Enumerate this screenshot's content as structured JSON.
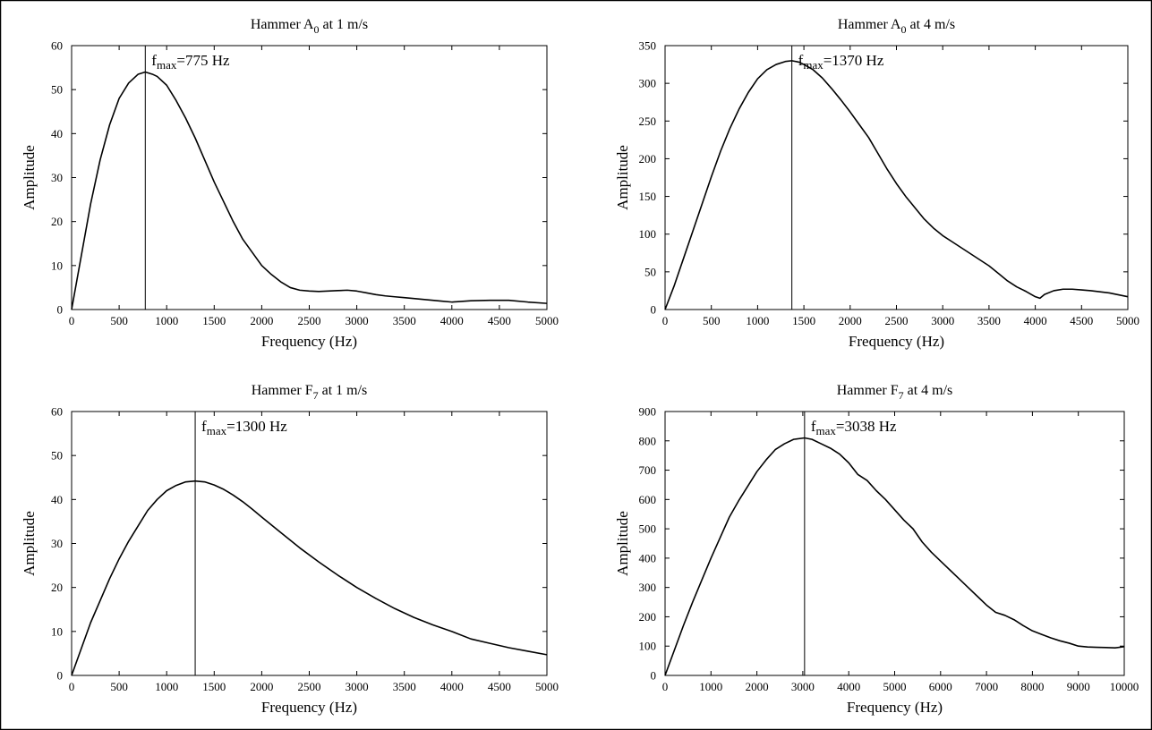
{
  "chart_data": [
    {
      "type": "line",
      "title": {
        "prefix": "Hammer A",
        "sub": "0",
        "suffix": " at 1 m/s"
      },
      "xlabel": "Frequency (Hz)",
      "ylabel": "Amplitude",
      "xlim": [
        0,
        5000
      ],
      "ylim": [
        0,
        60
      ],
      "xticks": [
        0,
        500,
        1000,
        1500,
        2000,
        2500,
        3000,
        3500,
        4000,
        4500,
        5000
      ],
      "yticks": [
        0,
        10,
        20,
        30,
        40,
        50,
        60
      ],
      "grid": false,
      "annotation": {
        "f": "f",
        "sub": "max",
        "text": "=775 Hz",
        "x": 775
      },
      "x": [
        0,
        100,
        200,
        300,
        400,
        500,
        600,
        700,
        775,
        850,
        900,
        1000,
        1100,
        1200,
        1300,
        1400,
        1500,
        1600,
        1700,
        1800,
        1900,
        2000,
        2100,
        2200,
        2300,
        2400,
        2500,
        2600,
        2700,
        2800,
        2900,
        3000,
        3100,
        3200,
        3300,
        3400,
        3500,
        3600,
        3700,
        3800,
        3900,
        4000,
        4200,
        4400,
        4600,
        4800,
        5000
      ],
      "y": [
        0,
        12,
        24,
        34,
        42,
        48,
        51.5,
        53.5,
        54,
        53.5,
        53,
        51,
        47.5,
        43.5,
        39,
        34,
        29,
        24.5,
        20,
        16,
        13,
        10,
        8,
        6.3,
        5,
        4.4,
        4.2,
        4.1,
        4.2,
        4.3,
        4.4,
        4.2,
        3.8,
        3.4,
        3.1,
        2.9,
        2.7,
        2.5,
        2.3,
        2.1,
        1.9,
        1.7,
        2.0,
        2.1,
        2.1,
        1.7,
        1.4
      ]
    },
    {
      "type": "line",
      "title": {
        "prefix": "Hammer A",
        "sub": "0",
        "suffix": " at 4 m/s"
      },
      "xlabel": "Frequency (Hz)",
      "ylabel": "Amplitude",
      "xlim": [
        0,
        5000
      ],
      "ylim": [
        0,
        350
      ],
      "xticks": [
        0,
        500,
        1000,
        1500,
        2000,
        2500,
        3000,
        3500,
        4000,
        4500,
        5000
      ],
      "yticks": [
        0,
        50,
        100,
        150,
        200,
        250,
        300,
        350
      ],
      "grid": false,
      "annotation": {
        "f": "f",
        "sub": "max",
        "text": "=1370 Hz",
        "x": 1370
      },
      "x": [
        0,
        100,
        200,
        300,
        400,
        500,
        600,
        700,
        800,
        900,
        1000,
        1100,
        1200,
        1300,
        1370,
        1450,
        1500,
        1600,
        1700,
        1800,
        1900,
        2000,
        2100,
        2200,
        2300,
        2400,
        2500,
        2600,
        2700,
        2800,
        2900,
        3000,
        3100,
        3200,
        3300,
        3400,
        3500,
        3600,
        3700,
        3800,
        3900,
        4000,
        4050,
        4100,
        4200,
        4300,
        4400,
        4500,
        4600,
        4800,
        5000
      ],
      "y": [
        0,
        32,
        68,
        104,
        140,
        176,
        210,
        240,
        266,
        288,
        306,
        318,
        325,
        329,
        330,
        328,
        325,
        318,
        307,
        293,
        278,
        262,
        245,
        228,
        207,
        186,
        167,
        150,
        135,
        120,
        108,
        98,
        90,
        82,
        74,
        66,
        58,
        48,
        38,
        30,
        24,
        17,
        15,
        20,
        25,
        27,
        27,
        26,
        25,
        22,
        17
      ]
    },
    {
      "type": "line",
      "title": {
        "prefix": "Hammer F",
        "sub": "7",
        "suffix": " at 1 m/s"
      },
      "xlabel": "Frequency (Hz)",
      "ylabel": "Amplitude",
      "xlim": [
        0,
        5000
      ],
      "ylim": [
        0,
        60
      ],
      "xticks": [
        0,
        500,
        1000,
        1500,
        2000,
        2500,
        3000,
        3500,
        4000,
        4500,
        5000
      ],
      "yticks": [
        0,
        10,
        20,
        30,
        40,
        50,
        60
      ],
      "grid": false,
      "annotation": {
        "f": "f",
        "sub": "max",
        "text": "=1300 Hz",
        "x": 1300
      },
      "x": [
        0,
        100,
        200,
        300,
        400,
        500,
        600,
        700,
        800,
        900,
        1000,
        1100,
        1200,
        1300,
        1400,
        1500,
        1600,
        1700,
        1800,
        1900,
        2000,
        2200,
        2400,
        2600,
        2800,
        3000,
        3200,
        3400,
        3600,
        3800,
        4000,
        4200,
        4400,
        4600,
        4800,
        5000
      ],
      "y": [
        0,
        6,
        12,
        17,
        22,
        26.5,
        30.5,
        34,
        37.5,
        40,
        42,
        43.2,
        44,
        44.2,
        44,
        43.3,
        42.3,
        41,
        39.5,
        37.8,
        36,
        32.5,
        29,
        25.8,
        22.8,
        20,
        17.5,
        15.2,
        13.2,
        11.5,
        10,
        8.3,
        7.3,
        6.3,
        5.5,
        4.7
      ]
    },
    {
      "type": "line",
      "title": {
        "prefix": "Hammer F",
        "sub": "7",
        "suffix": " at 4 m/s"
      },
      "xlabel": "Frequency (Hz)",
      "ylabel": "Amplitude",
      "xlim": [
        0,
        10000
      ],
      "ylim": [
        0,
        900
      ],
      "xticks": [
        0,
        1000,
        2000,
        3000,
        4000,
        5000,
        6000,
        7000,
        8000,
        9000,
        10000
      ],
      "yticks": [
        0,
        100,
        200,
        300,
        400,
        500,
        600,
        700,
        800,
        900
      ],
      "grid": false,
      "annotation": {
        "f": "f",
        "sub": "max",
        "text": "=3038 Hz",
        "x": 3038
      },
      "x": [
        0,
        200,
        400,
        600,
        800,
        1000,
        1200,
        1400,
        1600,
        1800,
        2000,
        2200,
        2400,
        2600,
        2800,
        3038,
        3200,
        3400,
        3600,
        3800,
        4000,
        4200,
        4400,
        4600,
        4800,
        5000,
        5200,
        5400,
        5600,
        5800,
        6000,
        6200,
        6400,
        6600,
        6800,
        7000,
        7200,
        7400,
        7600,
        7800,
        8000,
        8200,
        8400,
        8600,
        8800,
        9000,
        9200,
        9400,
        9600,
        9800,
        10000
      ],
      "y": [
        0,
        85,
        170,
        250,
        325,
        400,
        470,
        540,
        595,
        645,
        695,
        735,
        770,
        790,
        805,
        810,
        805,
        790,
        775,
        755,
        725,
        685,
        665,
        630,
        600,
        565,
        530,
        500,
        455,
        420,
        390,
        360,
        330,
        300,
        270,
        240,
        215,
        205,
        190,
        170,
        152,
        140,
        128,
        118,
        110,
        100,
        97,
        96,
        95,
        94,
        98
      ]
    }
  ]
}
